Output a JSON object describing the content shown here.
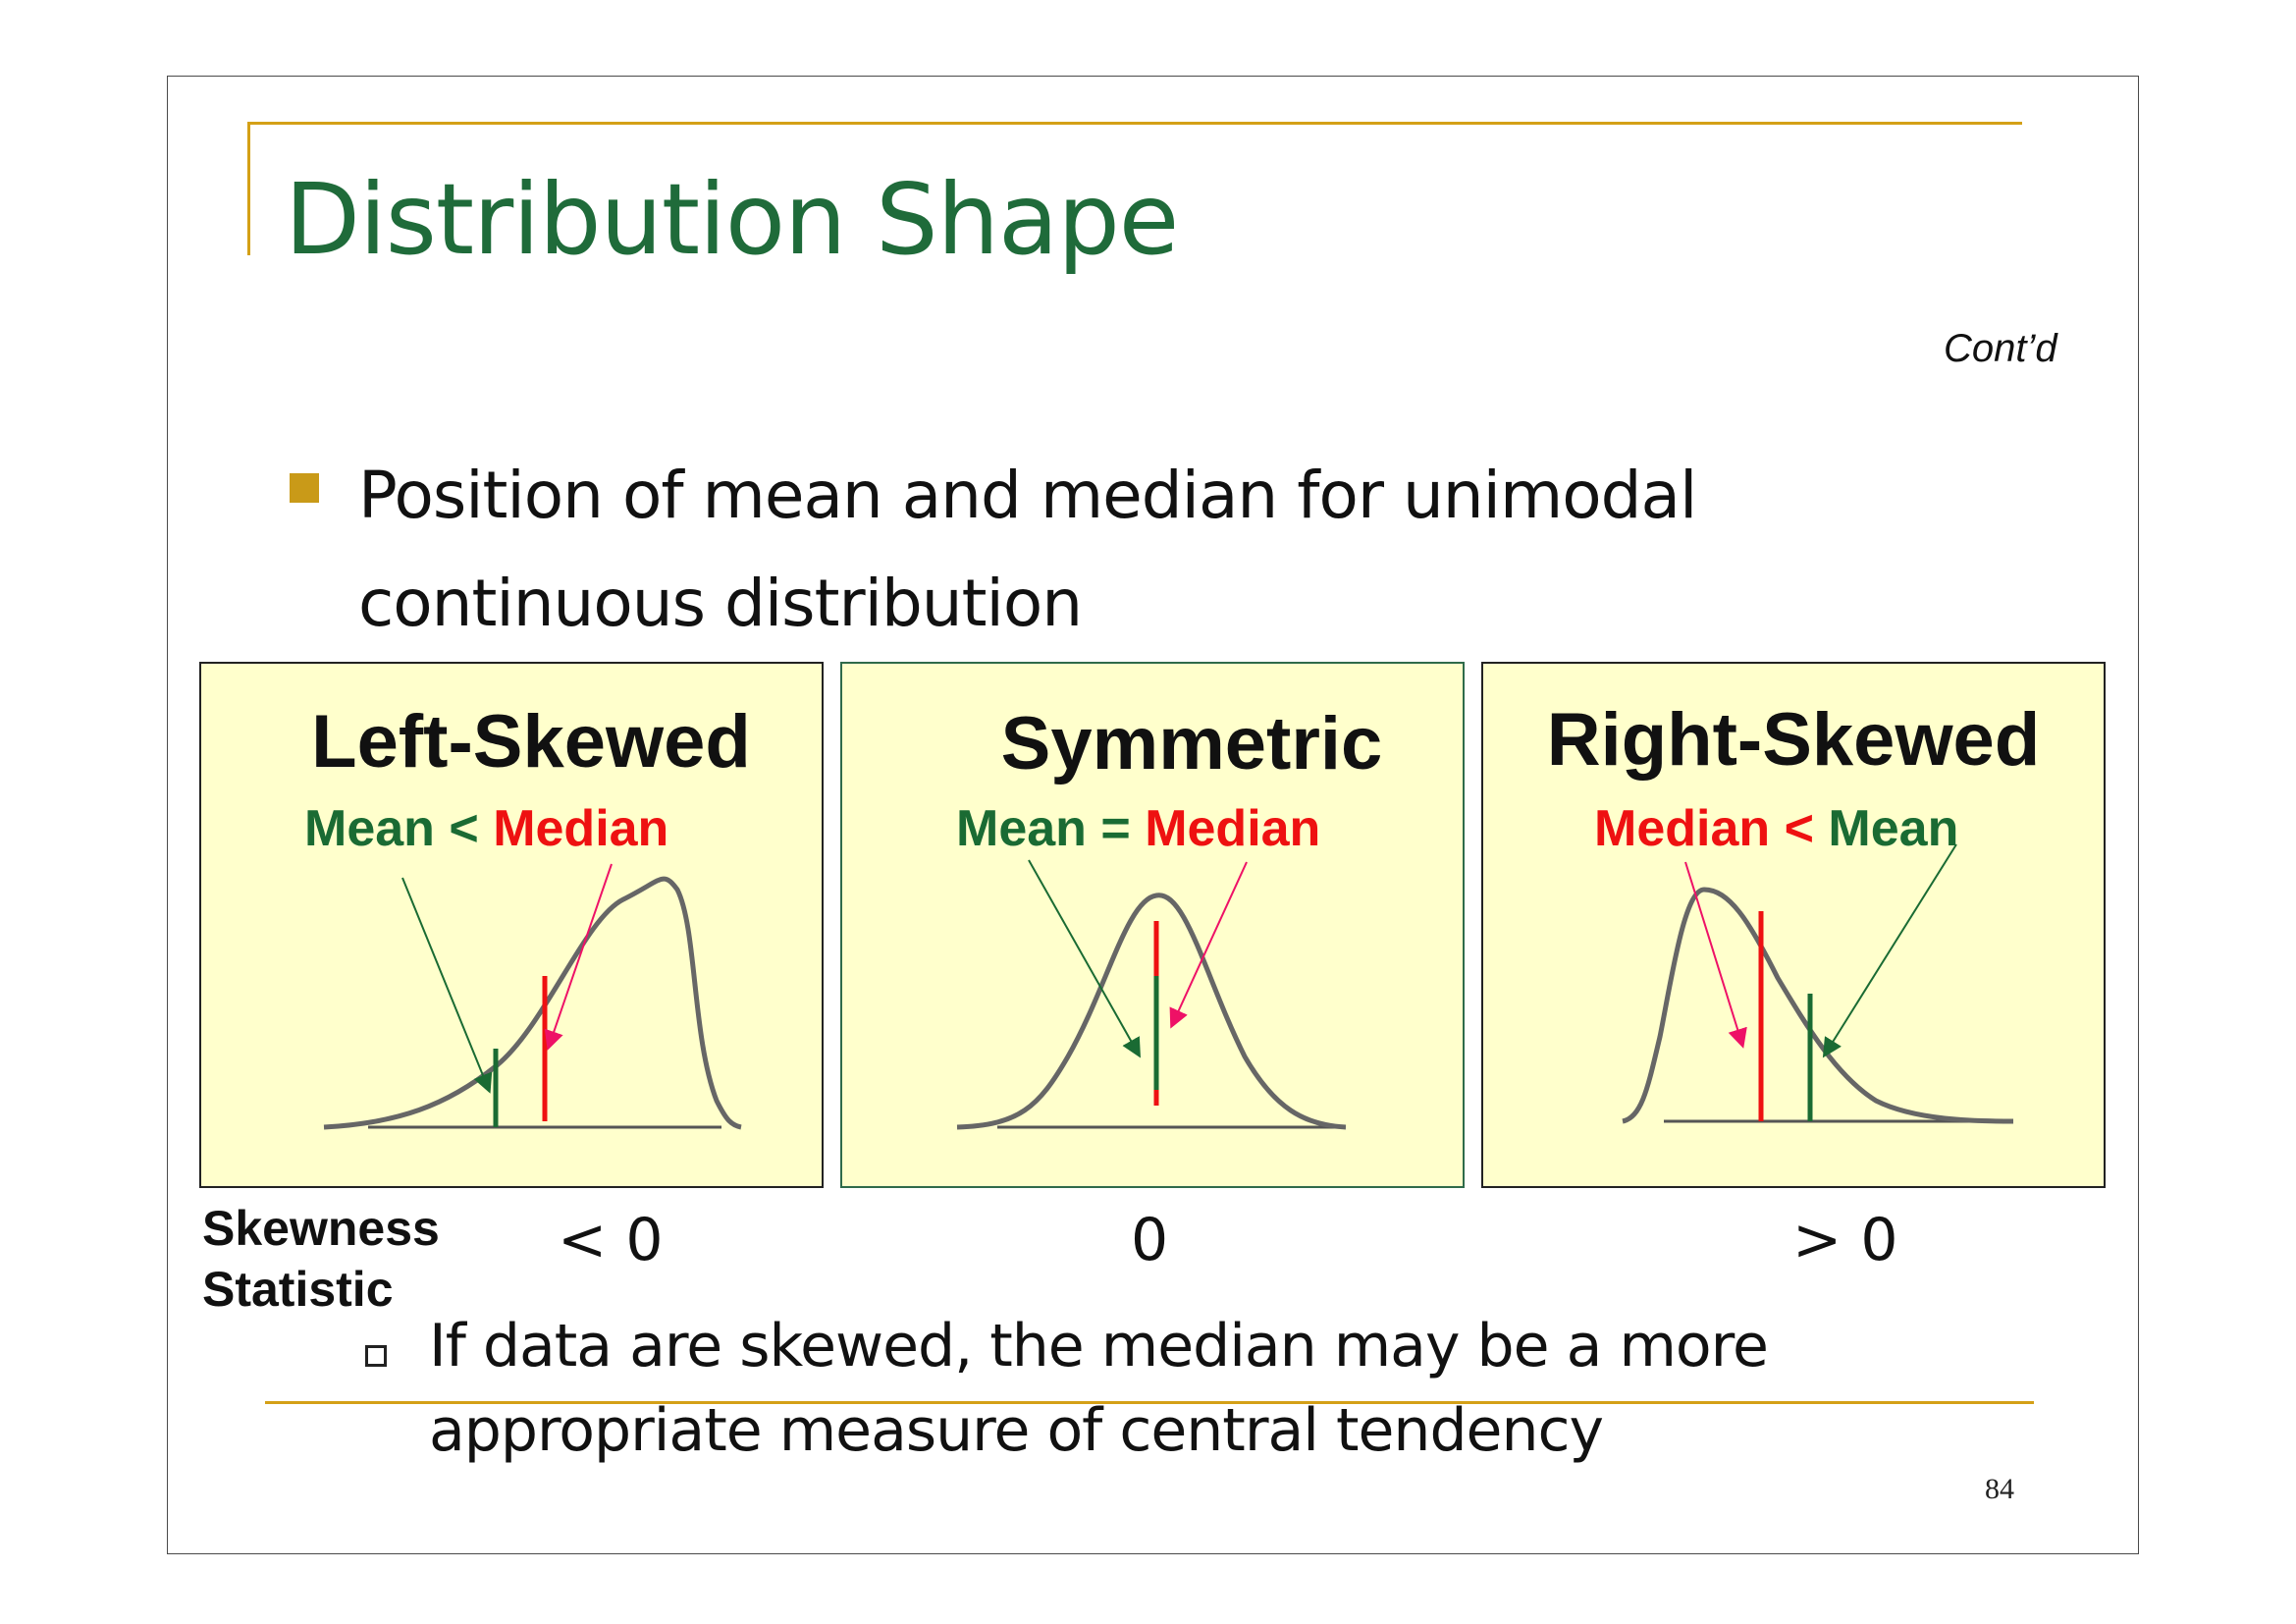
{
  "slide": {
    "title": "Distribution Shape",
    "contd": "Cont’d",
    "bullet": "Position of mean and median for unimodal continuous distribution",
    "page_number": "84"
  },
  "panels": [
    {
      "title": "Left-Skewed",
      "rel_left": "Mean",
      "rel_op": " < ",
      "rel_right": "Median",
      "rel_left_color": "#1a6b33",
      "rel_right_color": "#ee1111"
    },
    {
      "title": "Symmetric",
      "rel_left": "Mean",
      "rel_op": " = ",
      "rel_right": "Median",
      "rel_left_color": "#1a6b33",
      "rel_right_color": "#ee1111"
    },
    {
      "title": "Right-Skewed",
      "rel_left": "Median",
      "rel_op": " < ",
      "rel_right": "Mean",
      "rel_left_color": "#ee1111",
      "rel_right_color": "#1a6b33"
    }
  ],
  "skewness": {
    "label_line1": "Skewness",
    "label_line2": "Statistic",
    "values": [
      "< 0",
      "0",
      "> 0"
    ]
  },
  "sub_bullet": "If data are skewed, the median may be a more appropriate measure of central tendency",
  "colors": {
    "title_green": "#1f6b3a",
    "accent_gold": "#d4a017",
    "panel_fill": "#ffffcc",
    "mean_green": "#1a6b33",
    "median_red": "#ee1111",
    "curve_gray": "#666666"
  }
}
